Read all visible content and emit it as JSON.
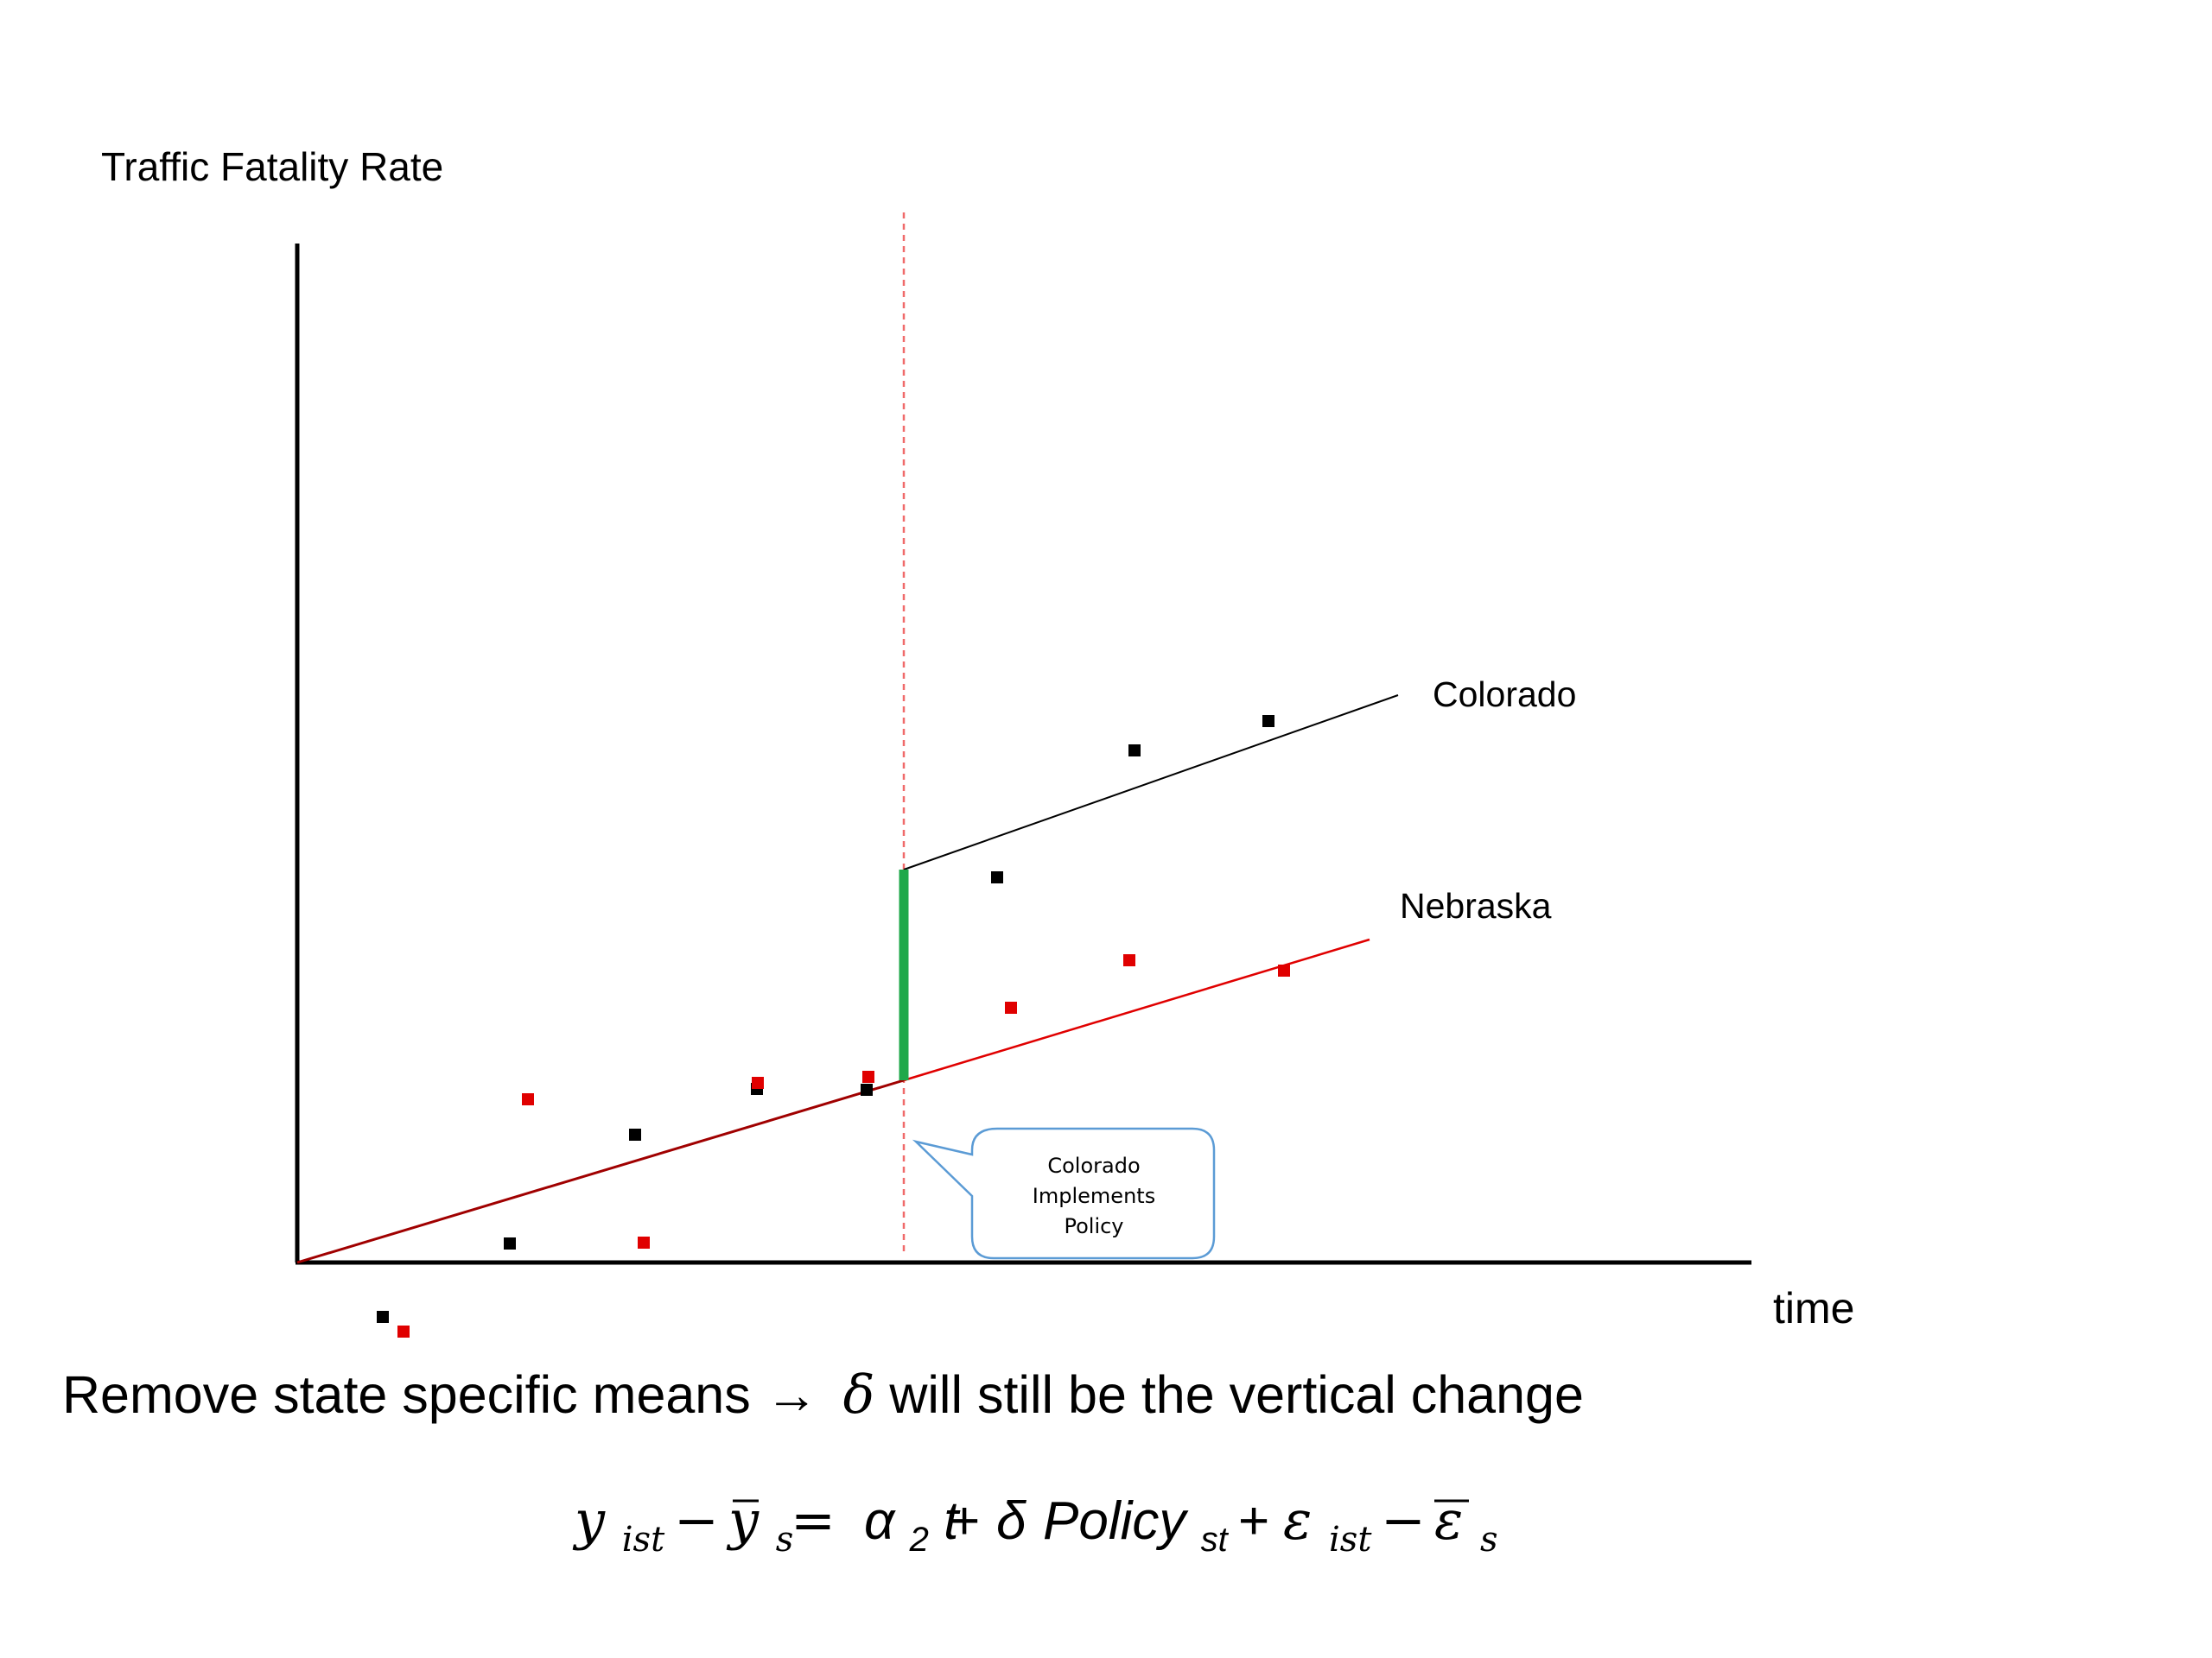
{
  "diagram": {
    "y_axis_label": "Traffic Fatality Rate",
    "x_axis_label": "time",
    "colorado_label": "Colorado",
    "nebraska_label": "Nebraska",
    "callout": {
      "line1": "Colorado",
      "line2": "Implements",
      "line3": "Policy"
    },
    "colors": {
      "colorado": "#000000",
      "nebraska": "#e00000",
      "shared_trend": "#a00000",
      "treatment_effect": "#1fa84a",
      "policy_line": "#f06a6a",
      "callout_border": "#5b9bd5"
    }
  },
  "caption": {
    "text_before": "Remove state specific means",
    "arrow": "→",
    "delta": "δ",
    "text_after": " will still be the vertical change"
  },
  "equation": {
    "y": "y",
    "sub_ist": "ist",
    "minus": "−",
    "ybar_s": "s",
    "equals": "=",
    "alpha": "α",
    "alpha_sub": "2",
    "t": "t",
    "plus": "+",
    "delta": "δ",
    "policy": "Policy",
    "policy_sub": "st",
    "eps": "ε",
    "eps_sub": "ist",
    "epsbar_sub": "s"
  }
}
